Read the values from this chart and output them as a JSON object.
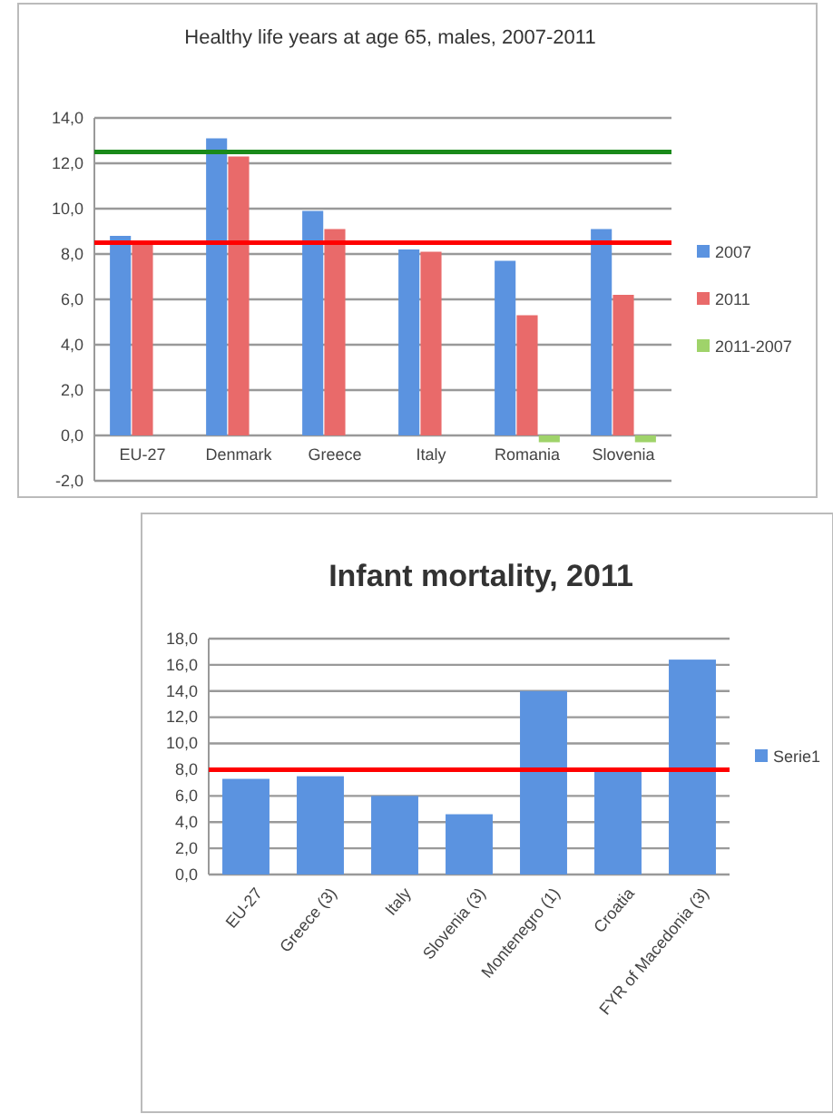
{
  "chart_data": [
    {
      "type": "bar",
      "title": "Healthy life years at age 65, males, 2007-2011",
      "categories": [
        "EU-27",
        "Denmark",
        "Greece",
        "Italy",
        "Romania",
        "Slovenia"
      ],
      "series": [
        {
          "name": "2007",
          "color": "#5b93e0",
          "values": [
            8.8,
            13.1,
            9.9,
            8.2,
            7.7,
            9.1
          ]
        },
        {
          "name": "2011",
          "color": "#e96a6a",
          "values": [
            8.6,
            12.3,
            9.1,
            8.1,
            5.3,
            6.2
          ]
        },
        {
          "name": "2011-2007",
          "color": "#9fd36a",
          "values": [
            0,
            0,
            0,
            0,
            -0.3,
            -0.3
          ]
        }
      ],
      "ylim": [
        -2,
        14
      ],
      "yticks": [
        {
          "value": -2,
          "label": "-2,0"
        },
        {
          "value": 0,
          "label": "0,0"
        },
        {
          "value": 2,
          "label": "2,0"
        },
        {
          "value": 4,
          "label": "4,0"
        },
        {
          "value": 6,
          "label": "6,0"
        },
        {
          "value": 8,
          "label": "8,0"
        },
        {
          "value": 10,
          "label": "10,0"
        },
        {
          "value": 12,
          "label": "12,0"
        },
        {
          "value": 14,
          "label": "14,0"
        }
      ],
      "grid": "y",
      "legend": "right",
      "ref_lines": [
        {
          "axis": "y",
          "value": 12.5,
          "color": "#1a8a1a"
        },
        {
          "axis": "y",
          "value": 8.5,
          "color": "#ff0000"
        }
      ]
    },
    {
      "type": "bar",
      "title": "Infant mortality, 2011",
      "categories": [
        "EU-27",
        "Greece (3)",
        "Italy",
        "Slovenia (3)",
        "Montenegro (1)",
        "Croatia",
        "FYR of Macedonia (3)"
      ],
      "series": [
        {
          "name": "Serie1",
          "color": "#5b93e0",
          "values": [
            7.3,
            7.5,
            6.0,
            4.6,
            14.0,
            7.9,
            16.4
          ]
        }
      ],
      "ylim": [
        0,
        18
      ],
      "yticks": [
        {
          "value": 0,
          "label": "0,0"
        },
        {
          "value": 2,
          "label": "2,0"
        },
        {
          "value": 4,
          "label": "4,0"
        },
        {
          "value": 6,
          "label": "6,0"
        },
        {
          "value": 8,
          "label": "8,0"
        },
        {
          "value": 10,
          "label": "10,0"
        },
        {
          "value": 12,
          "label": "12,0"
        },
        {
          "value": 14,
          "label": "14,0"
        },
        {
          "value": 16,
          "label": "16,0"
        },
        {
          "value": 18,
          "label": "18,0"
        }
      ],
      "grid": "y",
      "legend": "right",
      "ref_lines": [
        {
          "axis": "y",
          "value": 8.0,
          "color": "#ff0000"
        }
      ]
    }
  ]
}
